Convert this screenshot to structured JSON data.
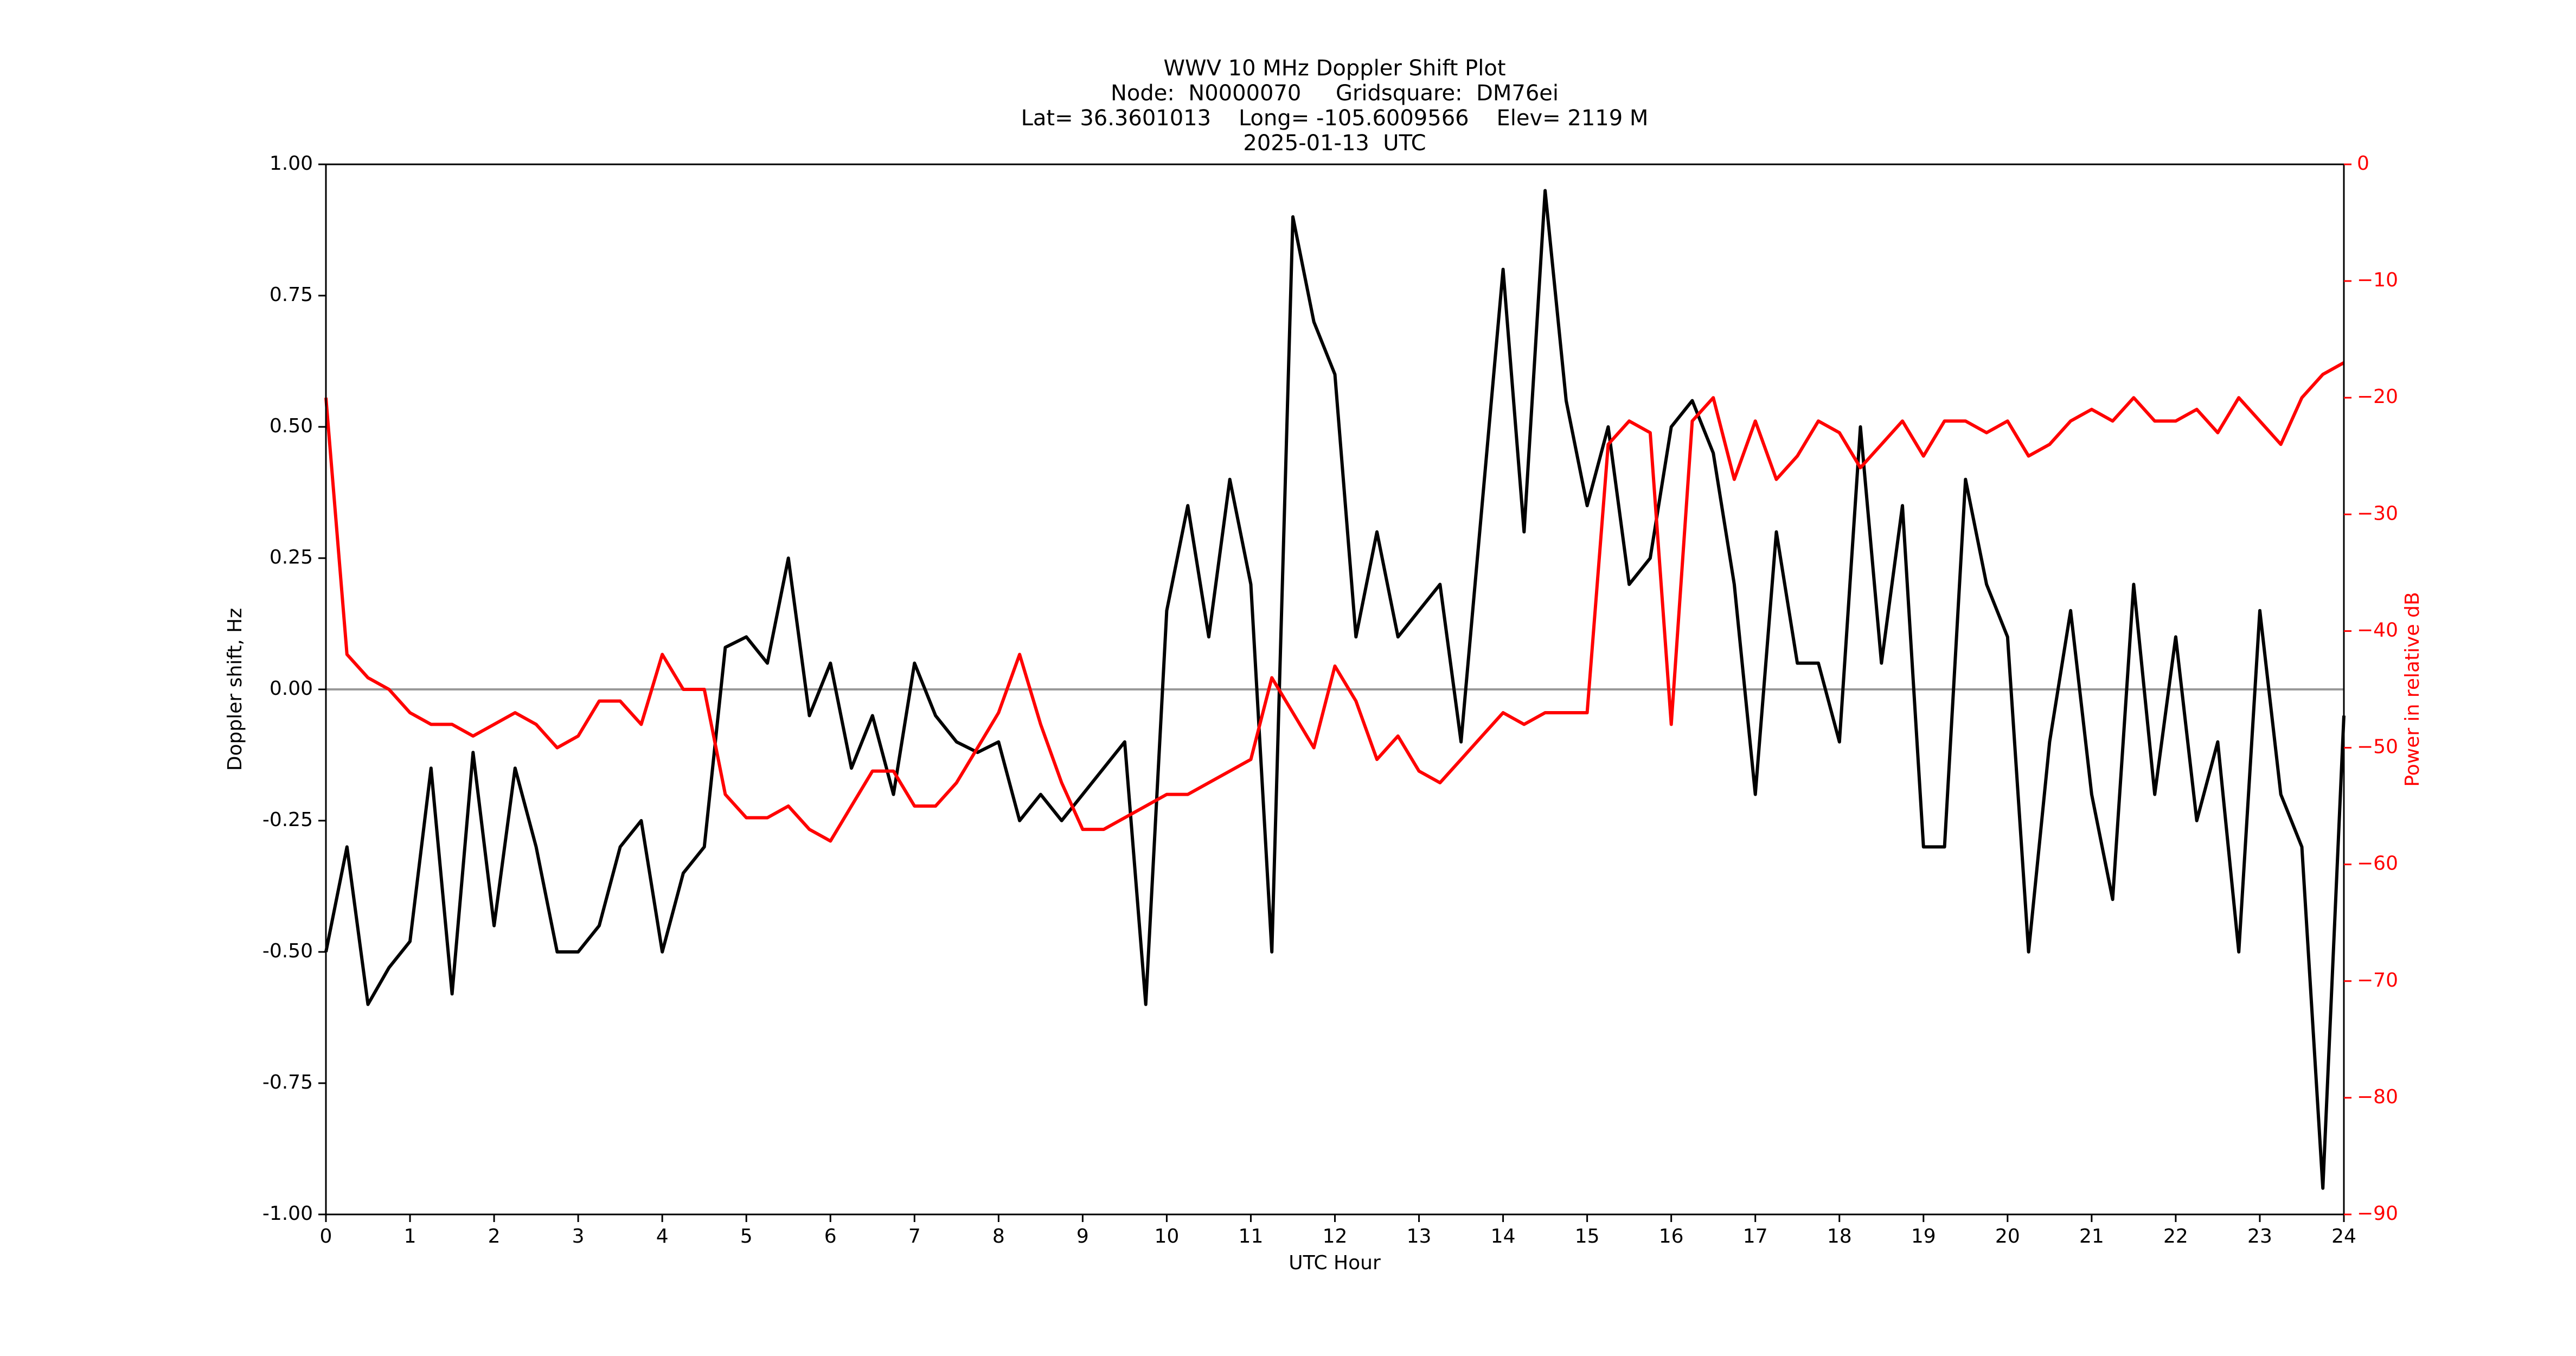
{
  "chart_data": {
    "type": "line",
    "title": "WWV 10 MHz Doppler Shift Plot",
    "subtitle": [
      "Node:  N0000070     Gridsquare:  DM76ei",
      "Lat= 36.3601013    Long= -105.6009566    Elev= 2119 M",
      "2025-01-13  UTC"
    ],
    "xlabel": "UTC Hour",
    "ylabel": "Doppler shift, Hz",
    "y2label": "Power in relative dB",
    "y2color": "#ff0000",
    "x": [
      0,
      0.25,
      0.5,
      0.75,
      1,
      1.25,
      1.5,
      1.75,
      2,
      2.25,
      2.5,
      2.75,
      3,
      3.25,
      3.5,
      3.75,
      4,
      4.25,
      4.5,
      4.75,
      5,
      5.25,
      5.5,
      5.75,
      6,
      6.25,
      6.5,
      6.75,
      7,
      7.25,
      7.5,
      7.75,
      8,
      8.25,
      8.5,
      8.75,
      9,
      9.25,
      9.5,
      9.75,
      10,
      10.25,
      10.5,
      10.75,
      11,
      11.25,
      11.5,
      11.75,
      12,
      12.25,
      12.5,
      12.75,
      13,
      13.25,
      13.5,
      13.75,
      14,
      14.25,
      14.5,
      14.75,
      15,
      15.25,
      15.5,
      15.75,
      16,
      16.25,
      16.5,
      16.75,
      17,
      17.25,
      17.5,
      17.75,
      18,
      18.25,
      18.5,
      18.75,
      19,
      19.25,
      19.5,
      19.75,
      20,
      20.25,
      20.5,
      20.75,
      21,
      21.25,
      21.5,
      21.75,
      22,
      22.25,
      22.5,
      22.75,
      23,
      23.25,
      23.5,
      23.75,
      24
    ],
    "series": [
      {
        "name": "Doppler shift",
        "color": "#000000",
        "values": [
          -0.5,
          -0.3,
          -0.6,
          -0.53,
          -0.48,
          -0.15,
          -0.58,
          -0.12,
          -0.45,
          -0.15,
          -0.3,
          -0.5,
          -0.5,
          -0.45,
          -0.3,
          -0.25,
          -0.5,
          -0.35,
          -0.3,
          0.08,
          0.1,
          0.05,
          0.25,
          -0.05,
          0.05,
          -0.15,
          -0.05,
          -0.2,
          0.05,
          -0.05,
          -0.1,
          -0.12,
          -0.1,
          -0.25,
          -0.2,
          -0.25,
          -0.2,
          -0.15,
          -0.1,
          -0.6,
          0.15,
          0.35,
          0.1,
          0.4,
          0.2,
          -0.5,
          0.9,
          0.7,
          0.6,
          0.1,
          0.3,
          0.1,
          0.15,
          0.2,
          -0.1,
          0.35,
          0.8,
          0.3,
          0.95,
          0.55,
          0.35,
          0.5,
          0.2,
          0.25,
          0.5,
          0.55,
          0.45,
          0.2,
          -0.2,
          0.3,
          0.05,
          0.05,
          -0.1,
          0.5,
          0.05,
          0.35,
          -0.3,
          -0.3,
          0.4,
          0.2,
          0.1,
          -0.5,
          -0.1,
          0.15,
          -0.2,
          -0.4,
          0.2,
          -0.2,
          0.1,
          -0.25,
          -0.1,
          -0.5,
          0.15,
          -0.2,
          -0.3,
          -0.95,
          -0.05
        ]
      },
      {
        "name": "Power",
        "color": "#ff0000",
        "axis": "y2",
        "values": [
          -20,
          -42,
          -44,
          -45,
          -47,
          -48,
          -48,
          -49,
          -48,
          -47,
          -48,
          -50,
          -49,
          -46,
          -46,
          -48,
          -42,
          -45,
          -45,
          -54,
          -56,
          -56,
          -55,
          -57,
          -58,
          -55,
          -52,
          -52,
          -55,
          -55,
          -53,
          -50,
          -47,
          -42,
          -48,
          -53,
          -57,
          -57,
          -56,
          -55,
          -54,
          -54,
          -53,
          -52,
          -51,
          -44,
          -47,
          -50,
          -43,
          -46,
          -51,
          -49,
          -52,
          -53,
          -51,
          -49,
          -47,
          -48,
          -47,
          -47,
          -47,
          -24,
          -22,
          -23,
          -48,
          -22,
          -20,
          -27,
          -22,
          -27,
          -25,
          -22,
          -23,
          -26,
          -24,
          -22,
          -25,
          -22,
          -22,
          -23,
          -22,
          -25,
          -24,
          -22,
          -21,
          -22,
          -20,
          -22,
          -22,
          -21,
          -23,
          -20,
          -22,
          -24,
          -20,
          -18,
          -17
        ]
      }
    ],
    "xlim": [
      0,
      24
    ],
    "xticks": [
      0,
      1,
      2,
      3,
      4,
      5,
      6,
      7,
      8,
      9,
      10,
      11,
      12,
      13,
      14,
      15,
      16,
      17,
      18,
      19,
      20,
      21,
      22,
      23,
      24
    ],
    "ylim": [
      -1,
      1
    ],
    "yticks": [
      {
        "value": -1,
        "label": "-1.00"
      },
      {
        "value": -0.75,
        "label": "-0.75"
      },
      {
        "value": -0.5,
        "label": "-0.50"
      },
      {
        "value": -0.25,
        "label": "-0.25"
      },
      {
        "value": 0,
        "label": "0.00"
      },
      {
        "value": 0.25,
        "label": "0.25"
      },
      {
        "value": 0.5,
        "label": "0.50"
      },
      {
        "value": 0.75,
        "label": "0.75"
      },
      {
        "value": 1,
        "label": "1.00"
      }
    ],
    "y2lim": [
      -90,
      0
    ],
    "y2ticks": [
      {
        "value": -90,
        "label": "−90"
      },
      {
        "value": -80,
        "label": "−80"
      },
      {
        "value": -70,
        "label": "−70"
      },
      {
        "value": -60,
        "label": "−60"
      },
      {
        "value": -50,
        "label": "−50"
      },
      {
        "value": -40,
        "label": "−40"
      },
      {
        "value": -30,
        "label": "−30"
      },
      {
        "value": -20,
        "label": "−20"
      },
      {
        "value": -10,
        "label": "−10"
      },
      0
    ],
    "hline": 0,
    "hline_color": "#999999"
  }
}
